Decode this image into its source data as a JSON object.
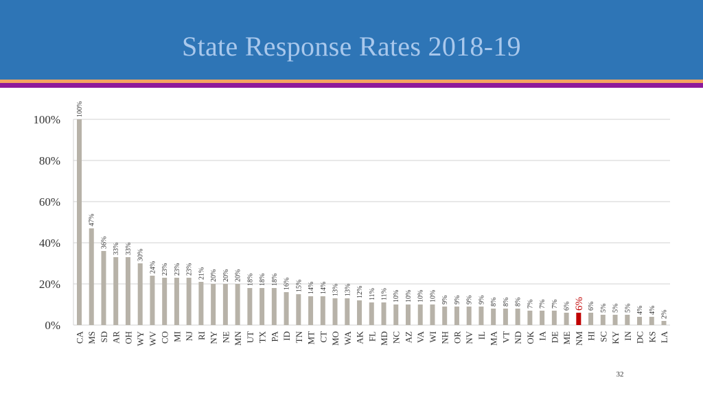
{
  "slide": {
    "title": "State Response Rates 2018-19",
    "page_number": "32"
  },
  "colors": {
    "header": "#2e75b6",
    "bar": "#b7b2a8",
    "highlight_bar": "#c00000",
    "highlight_label": "#c00000",
    "gridline": "#d0d0d0"
  },
  "chart_data": {
    "type": "bar",
    "title": "State Response Rates 2018-19",
    "xlabel": "",
    "ylabel": "",
    "ylim": [
      0,
      100
    ],
    "yticks": [
      0,
      20,
      40,
      60,
      80,
      100
    ],
    "ytick_labels": [
      "0%",
      "20%",
      "40%",
      "60%",
      "80%",
      "100%"
    ],
    "grid": true,
    "highlight": "NM",
    "categories": [
      "CA",
      "MS",
      "SD",
      "AR",
      "OH",
      "WY",
      "WV",
      "CO",
      "MI",
      "NJ",
      "RI",
      "NY",
      "NE",
      "MN",
      "UT",
      "TX",
      "PA",
      "ID",
      "TN",
      "MT",
      "CT",
      "MO",
      "WA",
      "AK",
      "FL",
      "MD",
      "NC",
      "AZ",
      "VA",
      "WI",
      "NH",
      "OR",
      "NV",
      "IL",
      "MA",
      "VT",
      "ND",
      "OK",
      "IA",
      "DE",
      "ME",
      "NM",
      "HI",
      "SC",
      "KY",
      "IN",
      "DC",
      "KS",
      "LA"
    ],
    "values": [
      100,
      47,
      36,
      33,
      33,
      30,
      24,
      23,
      23,
      23,
      21,
      20,
      20,
      20,
      18,
      18,
      18,
      16,
      15,
      14,
      14,
      13,
      13,
      12,
      11,
      11,
      10,
      10,
      10,
      10,
      9,
      9,
      9,
      9,
      8,
      8,
      8,
      7,
      7,
      7,
      6,
      6,
      6,
      5,
      5,
      5,
      4,
      4,
      2
    ],
    "value_labels": [
      "100%",
      "47%",
      "36%",
      "33%",
      "33%",
      "30%",
      "24%",
      "23%",
      "23%",
      "23%",
      "21%",
      "20%",
      "20%",
      "20%",
      "18%",
      "18%",
      "18%",
      "16%",
      "15%",
      "14%",
      "14%",
      "13%",
      "13%",
      "12%",
      "11%",
      "11%",
      "10%",
      "10%",
      "10%",
      "10%",
      "9%",
      "9%",
      "9%",
      "9%",
      "8%",
      "8%",
      "8%",
      "7%",
      "7%",
      "7%",
      "6%",
      "6%",
      "6%",
      "5%",
      "5%",
      "5%",
      "4%",
      "4%",
      "2%"
    ]
  }
}
